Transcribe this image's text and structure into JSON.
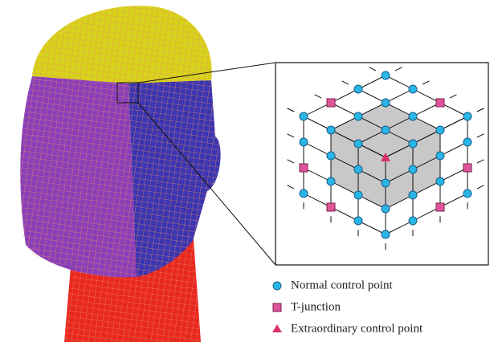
{
  "legend": {
    "items": [
      {
        "label": "Normal control point"
      },
      {
        "label": "T-junction"
      },
      {
        "label": "Extraordinary control point"
      }
    ]
  }
}
